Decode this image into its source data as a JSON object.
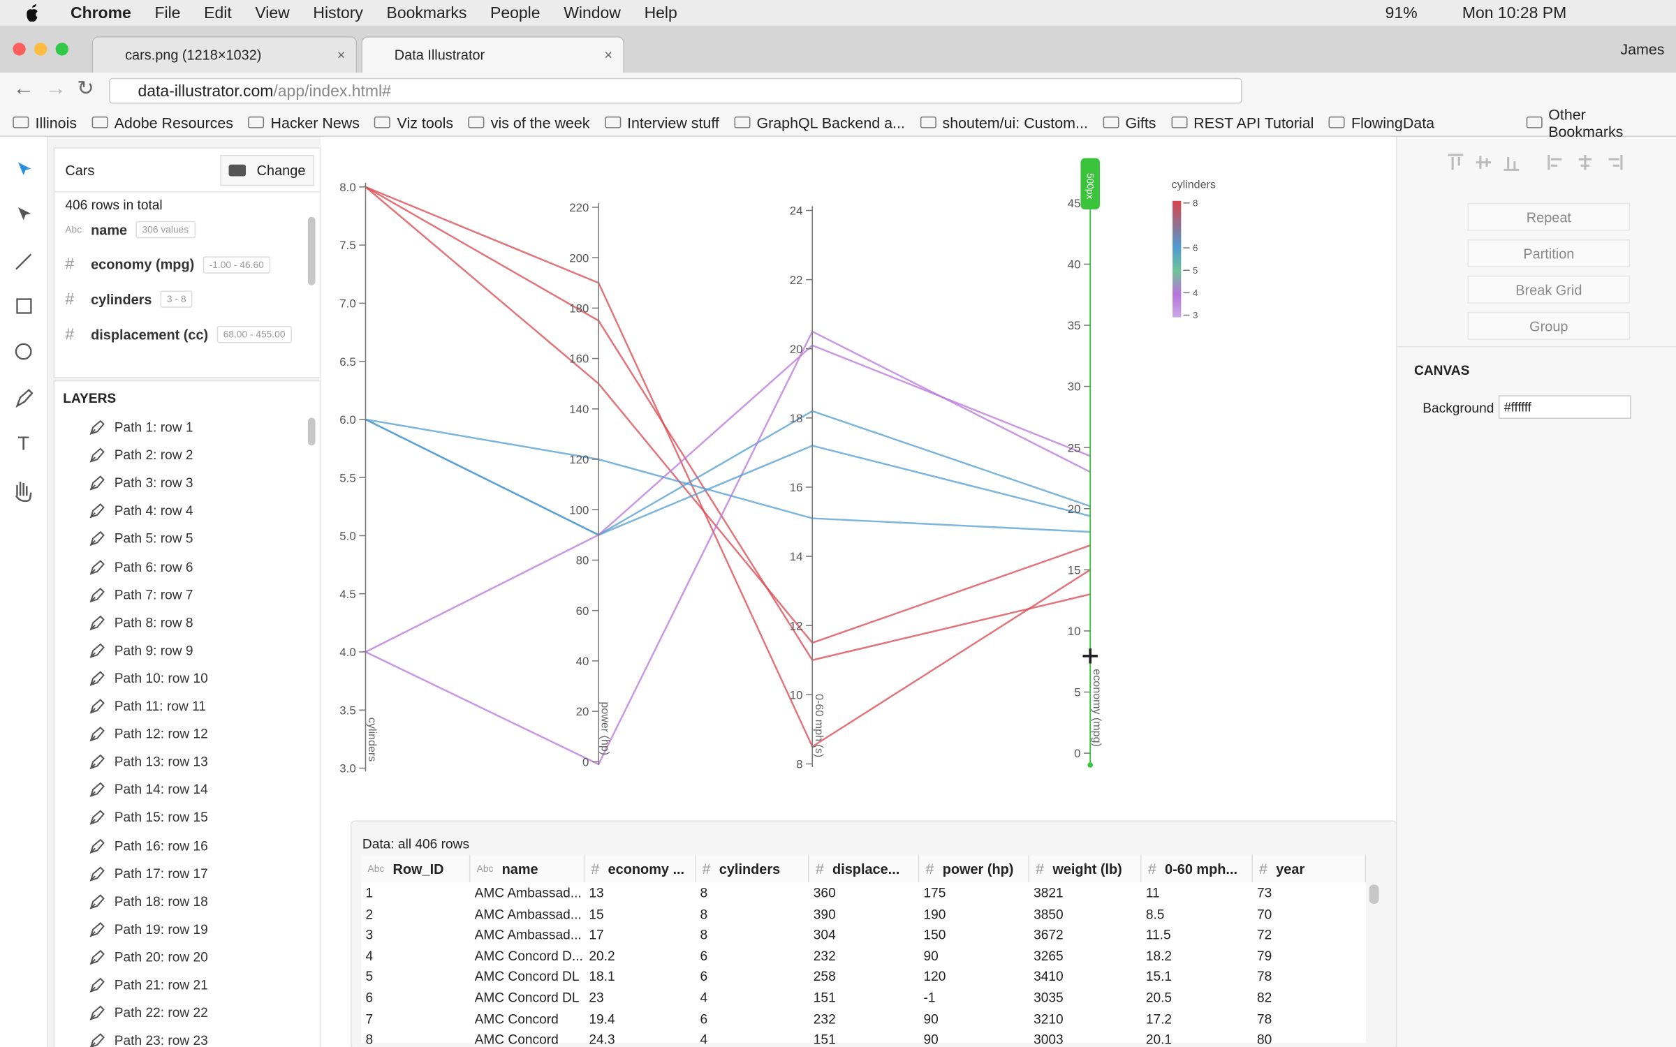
{
  "menubar": {
    "app": "Chrome",
    "menus": [
      "File",
      "Edit",
      "View",
      "History",
      "Bookmarks",
      "People",
      "Window",
      "Help"
    ],
    "battery": "91%",
    "clock": "Mon 10:28 PM"
  },
  "tabs": [
    "cars.png (1218×1032)",
    "Data Illustrator"
  ],
  "profile": "James",
  "address": {
    "domain": "data-illustrator.com",
    "path": "/app/index.html#"
  },
  "bookmarks": [
    "Illinois",
    "Adobe Resources",
    "Hacker News",
    "Viz tools",
    "vis of the week",
    "Interview stuff",
    "GraphQL Backend a...",
    "shoutem/ui: Custom...",
    "Gifts",
    "REST API Tutorial",
    "FlowingData"
  ],
  "other_bookmarks": "Other Bookmarks",
  "dataset": {
    "name": "Cars",
    "button": "Change",
    "summary": "406 rows in total",
    "fields": [
      {
        "type": "Abc",
        "name": "name",
        "info": "306 values"
      },
      {
        "type": "#",
        "name": "economy (mpg)",
        "info": "-1.00 - 46.60"
      },
      {
        "type": "#",
        "name": "cylinders",
        "info": "3 - 8"
      },
      {
        "type": "#",
        "name": "displacement (cc)",
        "info": "68.00 - 455.00"
      }
    ]
  },
  "layers": {
    "title": "LAYERS",
    "items": [
      "Path 1: row 1",
      "Path 2: row 2",
      "Path 3: row 3",
      "Path 4: row 4",
      "Path 5: row 5",
      "Path 6: row 6",
      "Path 7: row 7",
      "Path 8: row 8",
      "Path 9: row 9",
      "Path 10: row 10",
      "Path 11: row 11",
      "Path 12: row 12",
      "Path 13: row 13",
      "Path 14: row 14",
      "Path 15: row 15",
      "Path 16: row 16",
      "Path 17: row 17",
      "Path 18: row 18",
      "Path 19: row 19",
      "Path 20: row 20",
      "Path 21: row 21",
      "Path 22: row 22",
      "Path 23: row 23"
    ]
  },
  "chart": {
    "axes": [
      {
        "label": "cylinders",
        "lim": [
          3,
          8
        ],
        "ticks": [
          {
            "value": 3,
            "label": "3.0"
          },
          {
            "value": 3.5,
            "label": "3.5"
          },
          {
            "value": 4,
            "label": "4.0"
          },
          {
            "value": 4.5,
            "label": "4.5"
          },
          {
            "value": 5,
            "label": "5.0"
          },
          {
            "value": 5.5,
            "label": "5.5"
          },
          {
            "value": 6,
            "label": "6.0"
          },
          {
            "value": 6.5,
            "label": "6.5"
          },
          {
            "value": 7,
            "label": "7.0"
          },
          {
            "value": 7.5,
            "label": "7.5"
          },
          {
            "value": 8,
            "label": "8.0"
          }
        ]
      },
      {
        "label": "power (hp)",
        "lim": [
          0,
          220
        ],
        "ticks": [
          0,
          20,
          40,
          60,
          80,
          100,
          120,
          140,
          160,
          180,
          200,
          220
        ]
      },
      {
        "label": "0-60 mph (s)",
        "lim": [
          8,
          24
        ],
        "ticks": [
          8,
          10,
          12,
          14,
          16,
          18,
          20,
          22,
          24
        ]
      },
      {
        "label": "economy (mpg)",
        "lim": [
          0,
          45
        ],
        "ticks": [
          0,
          5,
          10,
          15,
          20,
          25,
          30,
          35,
          40,
          45
        ]
      }
    ],
    "handle": "500px",
    "legend": {
      "title": "cylinders",
      "ticks": [
        8,
        6,
        5,
        4,
        3
      ],
      "colors": [
        "#d8444c",
        "#4f9bd0",
        "#6fc39a",
        "#b774d9",
        "#c9a9e6"
      ]
    }
  },
  "right_panel": {
    "actions": [
      "Repeat",
      "Partition",
      "Break Grid",
      "Group"
    ],
    "section": "CANVAS",
    "property": {
      "label": "Background",
      "value": "#ffffff"
    }
  },
  "table": {
    "caption": "Data: all 406 rows",
    "columns": [
      {
        "type": "Abc",
        "name": "Row_ID"
      },
      {
        "type": "Abc",
        "name": "name"
      },
      {
        "type": "#",
        "name": "economy ..."
      },
      {
        "type": "#",
        "name": "cylinders"
      },
      {
        "type": "#",
        "name": "displace..."
      },
      {
        "type": "#",
        "name": "power (hp)"
      },
      {
        "type": "#",
        "name": "weight (lb)"
      },
      {
        "type": "#",
        "name": "0-60 mph..."
      },
      {
        "type": "#",
        "name": "year"
      }
    ],
    "rows": [
      [
        1,
        "AMC Ambassad...",
        13,
        8,
        360,
        175,
        3821,
        11,
        73
      ],
      [
        2,
        "AMC Ambassad...",
        15,
        8,
        390,
        190,
        3850,
        8.5,
        70
      ],
      [
        3,
        "AMC Ambassad...",
        17,
        8,
        304,
        150,
        3672,
        11.5,
        72
      ],
      [
        4,
        "AMC Concord D...",
        20.2,
        6,
        232,
        90,
        3265,
        18.2,
        79
      ],
      [
        5,
        "AMC Concord DL",
        18.1,
        6,
        258,
        120,
        3410,
        15.1,
        78
      ],
      [
        6,
        "AMC Concord DL",
        23,
        4,
        151,
        -1,
        3035,
        20.5,
        82
      ],
      [
        7,
        "AMC Concord",
        19.4,
        6,
        232,
        90,
        3210,
        17.2,
        78
      ],
      [
        8,
        "AMC Concord",
        24.3,
        4,
        151,
        90,
        3003,
        20.1,
        80
      ]
    ]
  }
}
